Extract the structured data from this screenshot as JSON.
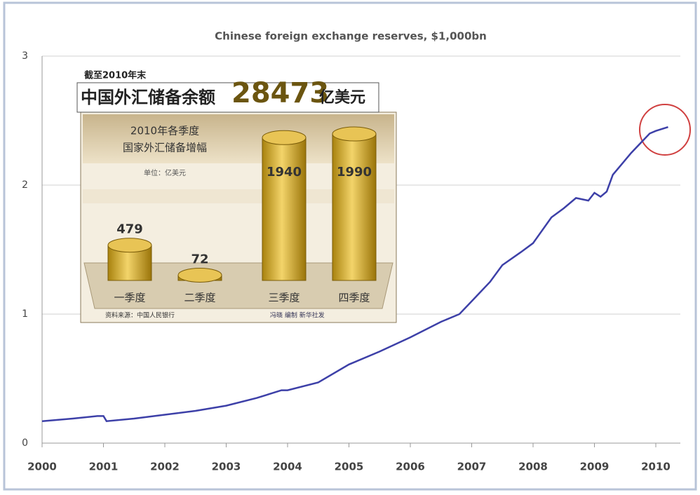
{
  "chart_data": {
    "type": "line",
    "title": "Chinese foreign exchange reserves, $1,000bn",
    "x": [
      2000,
      2000.5,
      2000.9,
      2001,
      2001.05,
      2001.5,
      2002,
      2002.5,
      2003,
      2003.5,
      2003.9,
      2004,
      2004.5,
      2005,
      2005.5,
      2006,
      2006.5,
      2006.8,
      2007,
      2007.3,
      2007.5,
      2007.8,
      2008,
      2008.3,
      2008.5,
      2008.7,
      2008.9,
      2009,
      2009.1,
      2009.2,
      2009.3,
      2009.6,
      2009.8,
      2009.9,
      2010,
      2010.2
    ],
    "values": [
      0.17,
      0.19,
      0.21,
      0.21,
      0.17,
      0.19,
      0.22,
      0.25,
      0.29,
      0.35,
      0.41,
      0.41,
      0.47,
      0.61,
      0.71,
      0.82,
      0.94,
      1.0,
      1.1,
      1.25,
      1.38,
      1.48,
      1.55,
      1.75,
      1.82,
      1.9,
      1.88,
      1.94,
      1.91,
      1.95,
      2.08,
      2.25,
      2.35,
      2.4,
      2.42,
      2.45
    ],
    "color": "#3d40a8",
    "xlim": [
      2000,
      2010.4
    ],
    "xticks": [
      2000,
      2001,
      2002,
      2003,
      2004,
      2005,
      2006,
      2007,
      2008,
      2009,
      2010
    ],
    "ylim": [
      0,
      3
    ],
    "yticks": [
      0,
      1,
      2,
      3
    ],
    "grid": true
  },
  "inset": {
    "date_label": "截至2010年末",
    "headline": "中国外汇储备余额",
    "total": 28473,
    "unit": "亿美元",
    "subtitle": [
      "2010年各季度",
      "国家外汇储备增幅"
    ],
    "unit_note": "单位：亿美元",
    "categories": [
      "一季度",
      "二季度",
      "三季度",
      "四季度"
    ],
    "values": [
      479,
      72,
      1940,
      1990
    ],
    "source": "资料来源：中国人民银行",
    "credit": "冯晓 编制 新华社发"
  }
}
